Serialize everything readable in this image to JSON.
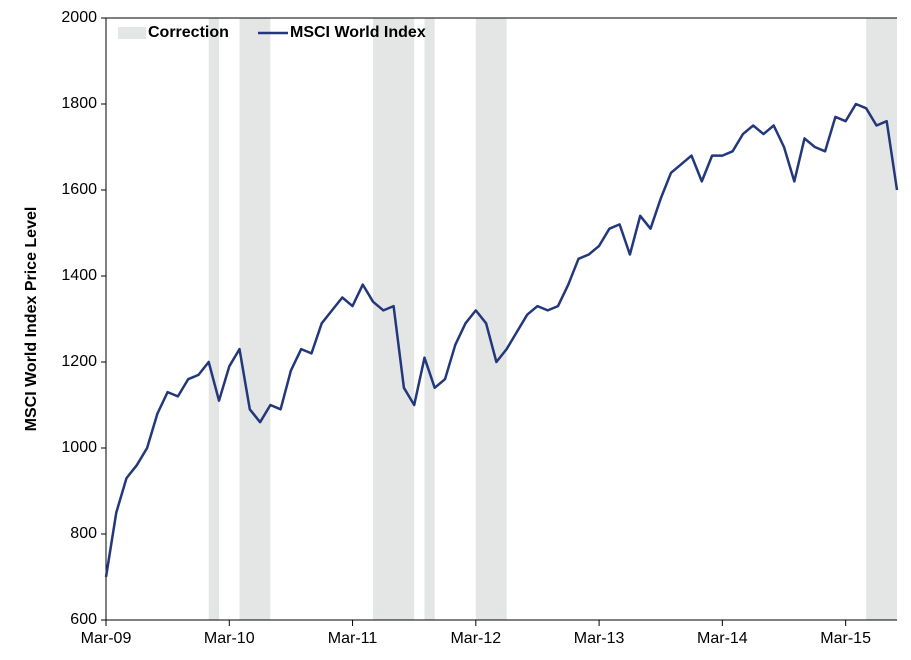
{
  "chart_data": {
    "type": "line",
    "y_label": "MSCI World Index Price Level",
    "x": [
      "2009-03",
      "2009-04",
      "2009-05",
      "2009-06",
      "2009-07",
      "2009-08",
      "2009-09",
      "2009-10",
      "2009-11",
      "2009-12",
      "2010-01",
      "2010-02",
      "2010-03",
      "2010-04",
      "2010-05",
      "2010-06",
      "2010-07",
      "2010-08",
      "2010-09",
      "2010-10",
      "2010-11",
      "2010-12",
      "2011-01",
      "2011-02",
      "2011-03",
      "2011-04",
      "2011-05",
      "2011-06",
      "2011-07",
      "2011-08",
      "2011-09",
      "2011-10",
      "2011-11",
      "2011-12",
      "2012-01",
      "2012-02",
      "2012-03",
      "2012-04",
      "2012-05",
      "2012-06",
      "2012-07",
      "2012-08",
      "2012-09",
      "2012-10",
      "2012-11",
      "2012-12",
      "2013-01",
      "2013-02",
      "2013-03",
      "2013-04",
      "2013-05",
      "2013-06",
      "2013-07",
      "2013-08",
      "2013-09",
      "2013-10",
      "2013-11",
      "2013-12",
      "2014-01",
      "2014-02",
      "2014-03",
      "2014-04",
      "2014-05",
      "2014-06",
      "2014-07",
      "2014-08",
      "2014-09",
      "2014-10",
      "2014-11",
      "2014-12",
      "2015-01",
      "2015-02",
      "2015-03",
      "2015-04",
      "2015-05",
      "2015-06",
      "2015-07",
      "2015-08"
    ],
    "series": [
      {
        "name": "MSCI World Index",
        "color": "#22387a",
        "values": [
          700,
          850,
          930,
          960,
          1000,
          1080,
          1130,
          1120,
          1160,
          1170,
          1200,
          1110,
          1190,
          1230,
          1090,
          1060,
          1100,
          1090,
          1180,
          1230,
          1220,
          1290,
          1320,
          1350,
          1330,
          1380,
          1340,
          1320,
          1330,
          1140,
          1100,
          1210,
          1140,
          1160,
          1240,
          1290,
          1320,
          1290,
          1200,
          1230,
          1270,
          1310,
          1330,
          1320,
          1330,
          1380,
          1440,
          1450,
          1470,
          1510,
          1520,
          1450,
          1540,
          1510,
          1580,
          1640,
          1660,
          1680,
          1620,
          1680,
          1680,
          1690,
          1730,
          1750,
          1730,
          1750,
          1700,
          1620,
          1720,
          1700,
          1690,
          1770,
          1760,
          1800,
          1790,
          1750,
          1760,
          1600
        ]
      }
    ],
    "bands": {
      "name": "Correction",
      "color": "#e4e6e6",
      "ranges": [
        [
          "2010-01",
          "2010-02"
        ],
        [
          "2010-04",
          "2010-07"
        ],
        [
          "2011-05",
          "2011-09"
        ],
        [
          "2011-10",
          "2011-11"
        ],
        [
          "2012-03",
          "2012-06"
        ],
        [
          "2015-05",
          "2015-08"
        ]
      ]
    },
    "xlim": [
      "2009-03",
      "2015-08"
    ],
    "xticks": [
      {
        "value": "2009-03",
        "label": "Mar-09"
      },
      {
        "value": "2010-03",
        "label": "Mar-10"
      },
      {
        "value": "2011-03",
        "label": "Mar-11"
      },
      {
        "value": "2012-03",
        "label": "Mar-12"
      },
      {
        "value": "2013-03",
        "label": "Mar-13"
      },
      {
        "value": "2014-03",
        "label": "Mar-14"
      },
      {
        "value": "2015-03",
        "label": "Mar-15"
      }
    ],
    "ylim": [
      600,
      2000
    ],
    "yticks": [
      600,
      800,
      1000,
      1200,
      1400,
      1600,
      1800,
      2000
    ],
    "legend": "top-left"
  }
}
